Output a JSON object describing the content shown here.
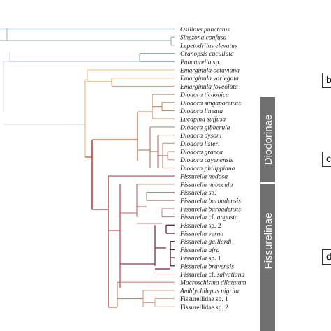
{
  "taxa": [
    {
      "name": "Osilinus punctatus"
    },
    {
      "name": "Sinezona confusa"
    },
    {
      "name": "Lepetodrilus elevatus"
    },
    {
      "name": "Cranopsis cucullata"
    },
    {
      "name": "Puncturella",
      "suffix": " sp."
    },
    {
      "name": "Emarginula octaviana"
    },
    {
      "name": "Emarginula variegata"
    },
    {
      "name": "Emarginula foveolata"
    },
    {
      "name": "Diodora ticaonica"
    },
    {
      "name": "Diodora singaporensis"
    },
    {
      "name": "Diodora lineata"
    },
    {
      "name": "Lucapina suffusa"
    },
    {
      "name": "Diodora gibberula"
    },
    {
      "name": "Diodora dysoni"
    },
    {
      "name": "Diodora listeri"
    },
    {
      "name": "Diodora graeca"
    },
    {
      "name": "Diodora cayenensis"
    },
    {
      "name": "Diodora philippiana"
    },
    {
      "name": "Fissurella nodosa"
    },
    {
      "name": "Fissurella nubecula"
    },
    {
      "name": "Fissurella",
      "suffix": " sp."
    },
    {
      "name": "Fissurella barbadensis"
    },
    {
      "name": "Fissurella barbadensis"
    },
    {
      "name": "Fissurella",
      "suffix": " cf. ",
      "name2": "angusta"
    },
    {
      "name": "Fissurella",
      "suffix": " sp. 2"
    },
    {
      "name": "Fissurella verna"
    },
    {
      "name": "Fissurella gaillardi"
    },
    {
      "name": "Fissurella afra"
    },
    {
      "name": "Fissurella",
      "suffix": " sp. 1"
    },
    {
      "name": "Fissurella bravensis"
    },
    {
      "name": "Fissurella",
      "suffix": " cf. ",
      "name2": "salvatiana"
    },
    {
      "name": "Macroschisma dilatatum"
    },
    {
      "name": "Amblychilepas nigrita"
    },
    {
      "name": "Fissurellidae sp. 1",
      "upright": true
    },
    {
      "name": "Fissurellidae sp. 2",
      "upright": true
    }
  ],
  "clades": {
    "diodorinae": "Diodorinae",
    "fissurelinae": "Fissurelinae"
  },
  "panels": [
    "b",
    "c",
    "d"
  ]
}
